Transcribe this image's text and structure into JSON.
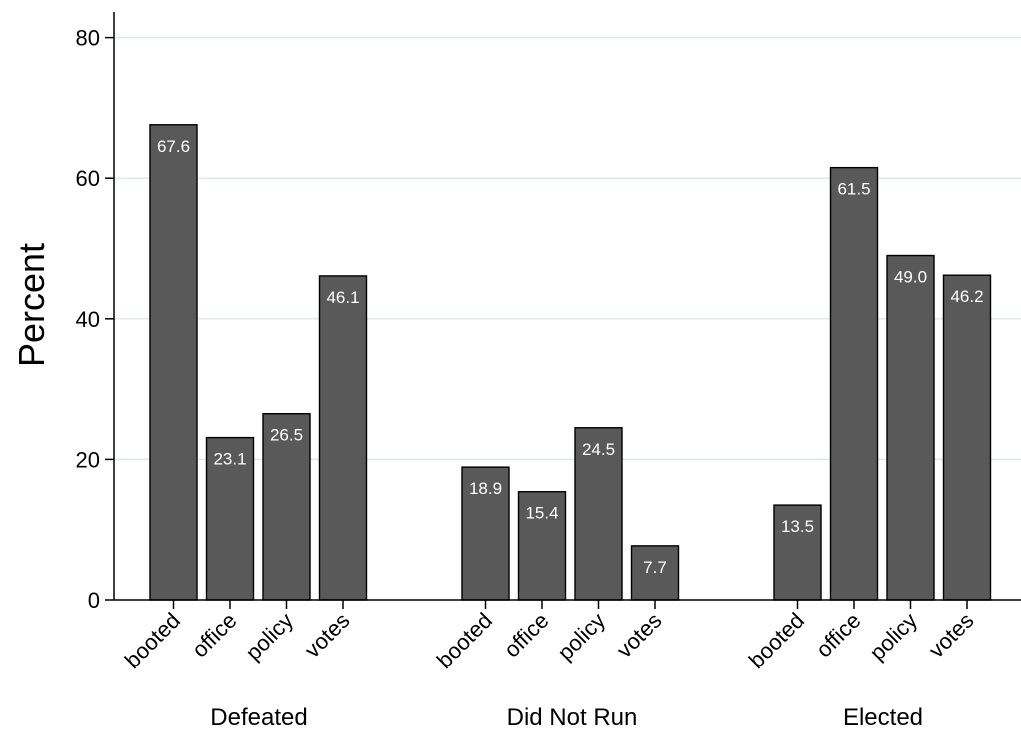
{
  "chart_data": {
    "type": "bar",
    "ylabel": "Percent",
    "xlabel": "",
    "ylim": [
      0,
      84
    ],
    "yticks": [
      0,
      20,
      40,
      60,
      80
    ],
    "grid": true,
    "bar_color": "#595959",
    "grid_color": "#dfe9ec",
    "groups": [
      {
        "name": "Defeated",
        "categories": [
          "booted",
          "office",
          "policy",
          "votes"
        ],
        "values": [
          67.6,
          23.1,
          26.5,
          46.1
        ],
        "labels": [
          "67.6",
          "23.1",
          "26.5",
          "46.1"
        ]
      },
      {
        "name": "Did Not Run",
        "categories": [
          "booted",
          "office",
          "policy",
          "votes"
        ],
        "values": [
          18.9,
          15.4,
          24.5,
          7.7
        ],
        "labels": [
          "18.9",
          "15.4",
          "24.5",
          "7.7"
        ]
      },
      {
        "name": "Elected",
        "categories": [
          "booted",
          "office",
          "policy",
          "votes"
        ],
        "values": [
          13.5,
          61.5,
          49.0,
          46.2
        ],
        "labels": [
          "13.5",
          "61.5",
          "49.0",
          "46.2"
        ]
      }
    ]
  }
}
